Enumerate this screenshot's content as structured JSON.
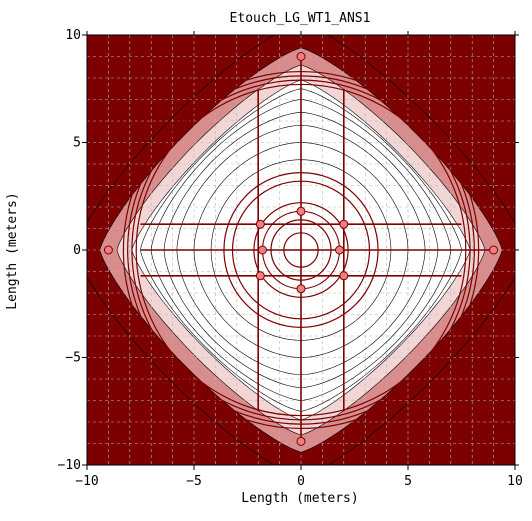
{
  "chart_data": {
    "type": "contour",
    "title": "Etouch_LG_WT1_ANS1",
    "xlabel": "Length (meters)",
    "ylabel": "Length (meters)",
    "xlim": [
      -10,
      10
    ],
    "ylim": [
      -10,
      10
    ],
    "x_ticks": [
      -10,
      -5,
      0,
      5,
      10
    ],
    "y_ticks": [
      -10,
      -5,
      0,
      5,
      10
    ],
    "x_tick_labels": [
      "−10",
      "−5",
      "0",
      "5",
      "10"
    ],
    "y_tick_labels": [
      "−10",
      "−5",
      "0",
      "5",
      "10"
    ],
    "grid": true,
    "colors": {
      "fill_dark": "#7d0000",
      "fill_mid": "#d98c8c",
      "fill_light": "#f2d6d6",
      "fill_inner": "#ffffff",
      "conductor": "#7d0000",
      "contour_line": "#000000",
      "electrode_point": "#f08080",
      "grid": "#b4b4b4"
    },
    "conductors": [
      {
        "x1": -7.5,
        "y1": 1.2,
        "x2": 7.5,
        "y2": 1.2
      },
      {
        "x1": -7.5,
        "y1": -1.2,
        "x2": 7.5,
        "y2": -1.2
      },
      {
        "x1": -7.5,
        "y1": 0,
        "x2": 9.0,
        "y2": 0
      },
      {
        "x1": -2.0,
        "y1": 7.5,
        "x2": -2.0,
        "y2": -7.5
      },
      {
        "x1": 2.0,
        "y1": 7.5,
        "x2": 2.0,
        "y2": -7.5
      },
      {
        "x1": 0,
        "y1": 9.0,
        "x2": 0,
        "y2": -9.0
      }
    ],
    "rings": [
      {
        "cx": 0,
        "cy": 0,
        "r": 0.8
      },
      {
        "cx": 0,
        "cy": 0,
        "r": 1.4
      },
      {
        "cx": 0,
        "cy": 0,
        "r": 1.8
      },
      {
        "cx": 0,
        "cy": 0,
        "r": 2.2
      },
      {
        "cx": 0,
        "cy": 0,
        "r": 3.2
      },
      {
        "cx": 0,
        "cy": 0,
        "r": 3.6
      },
      {
        "cx": 0,
        "cy": 0,
        "r": 7.7
      },
      {
        "cx": 0,
        "cy": 0,
        "r": 7.9
      },
      {
        "cx": 0,
        "cy": 0,
        "r": 8.1
      },
      {
        "cx": 0,
        "cy": 0,
        "r": 8.3
      }
    ],
    "electrodes": [
      {
        "x": 0,
        "y": 9.0
      },
      {
        "x": 0,
        "y": -8.9
      },
      {
        "x": 9.0,
        "y": 0
      },
      {
        "x": -9.0,
        "y": 0
      },
      {
        "x": 0,
        "y": 1.8
      },
      {
        "x": 0,
        "y": -1.8
      },
      {
        "x": 1.8,
        "y": 0
      },
      {
        "x": -1.8,
        "y": 0
      },
      {
        "x": -1.9,
        "y": 1.2
      },
      {
        "x": 2.0,
        "y": 1.2
      },
      {
        "x": -1.9,
        "y": -1.2
      },
      {
        "x": 2.0,
        "y": -1.2
      }
    ],
    "contour_levels": [
      {
        "fill_key": "fill_dark",
        "radius": 10.6
      },
      {
        "fill_key": "fill_mid",
        "radius": 9.4
      },
      {
        "fill_key": "fill_light",
        "radius": 8.6
      },
      {
        "fill_key": "fill_inner",
        "radius": 7.9
      }
    ],
    "contour_lines": [
      7.5,
      7.0,
      6.4,
      5.8,
      5.0,
      4.2
    ]
  }
}
